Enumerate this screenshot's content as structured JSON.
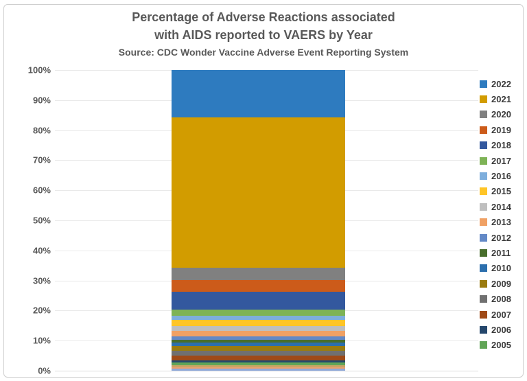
{
  "title": {
    "line1": "Percentage of Adverse Reactions associated",
    "line2": "with AIDS reported to VAERS by Year",
    "line3": "Source: CDC Wonder Vaccine Adverse Event Reporting System"
  },
  "chart_data": {
    "type": "bar",
    "subtype": "100-percent-stacked-column",
    "title": "Percentage of Adverse Reactions associated with AIDS reported to VAERS by Year",
    "subtitle": "Source: CDC Wonder Vaccine Adverse Event Reporting System",
    "categories": [
      ""
    ],
    "series": [
      {
        "name": "2022",
        "value": 15.8,
        "color": "#2e7bbf",
        "in_legend": true
      },
      {
        "name": "2021",
        "value": 50.0,
        "color": "#d29c00",
        "in_legend": true
      },
      {
        "name": "2020",
        "value": 4.1,
        "color": "#808080",
        "in_legend": true
      },
      {
        "name": "2019",
        "value": 3.8,
        "color": "#cc5b1a",
        "in_legend": true
      },
      {
        "name": "2018",
        "value": 5.9,
        "color": "#33589e",
        "in_legend": true
      },
      {
        "name": "2017",
        "value": 2.1,
        "color": "#7eb356",
        "in_legend": true
      },
      {
        "name": "2016",
        "value": 1.5,
        "color": "#7eaedc",
        "in_legend": true
      },
      {
        "name": "2015",
        "value": 1.9,
        "color": "#ffc527",
        "in_legend": true
      },
      {
        "name": "2014",
        "value": 1.6,
        "color": "#bfbfbf",
        "in_legend": true
      },
      {
        "name": "2013",
        "value": 1.9,
        "color": "#f0a164",
        "in_legend": true
      },
      {
        "name": "2012",
        "value": 1.2,
        "color": "#6389c6",
        "in_legend": true
      },
      {
        "name": "2011",
        "value": 0.8,
        "color": "#486e2c",
        "in_legend": true
      },
      {
        "name": "2010",
        "value": 1.2,
        "color": "#2c6fad",
        "in_legend": true
      },
      {
        "name": "2009",
        "value": 1.6,
        "color": "#9a7b10",
        "in_legend": true
      },
      {
        "name": "2008",
        "value": 1.6,
        "color": "#707070",
        "in_legend": true
      },
      {
        "name": "2007",
        "value": 1.6,
        "color": "#9f4a17",
        "in_legend": true
      },
      {
        "name": "2006",
        "value": 0.7,
        "color": "#25476c",
        "in_legend": true
      },
      {
        "name": "2005",
        "value": 0.9,
        "color": "#61a557",
        "in_legend": true
      },
      {
        "name": "unlabeled-segment-1",
        "value": 0.7,
        "color": "#c8a566",
        "in_legend": false
      },
      {
        "name": "unlabeled-segment-2",
        "value": 0.5,
        "color": "#eca06f",
        "in_legend": false
      },
      {
        "name": "unlabeled-segment-3",
        "value": 0.6,
        "color": "#8fa9d9",
        "in_legend": false
      }
    ],
    "y_ticks": [
      "0%",
      "10%",
      "20%",
      "30%",
      "40%",
      "50%",
      "60%",
      "70%",
      "80%",
      "90%",
      "100%"
    ],
    "ylim": [
      0,
      100
    ],
    "grid": true,
    "legend_position": "right"
  }
}
